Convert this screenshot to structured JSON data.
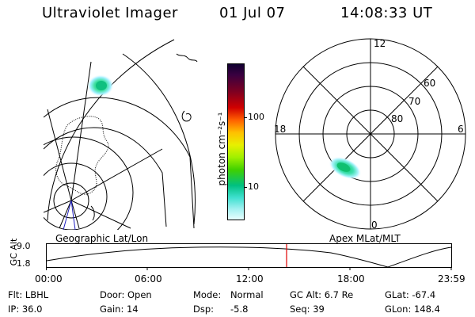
{
  "header": {
    "title": "Ultraviolet Imager",
    "date": "01 Jul 07",
    "time": "14:08:33 UT"
  },
  "geo_panel": {
    "label": "Geographic Lat/Lon"
  },
  "polar_panel": {
    "label": "Apex MLat/MLT",
    "mlt_labels": {
      "top": "12",
      "left": "18",
      "right": "6",
      "bottom": "0"
    },
    "lat_labels": [
      "60",
      "70",
      "80"
    ]
  },
  "colorbar": {
    "unit_label": "photon cm⁻²s⁻¹",
    "ticks": [
      "100",
      "10"
    ],
    "scale": "log"
  },
  "altitude_plot": {
    "axis_label": "GC Alt",
    "y_ticks": [
      "9.0",
      "1.8"
    ],
    "x_ticks": [
      "00:00",
      "06:00",
      "12:00",
      "18:00",
      "23:59"
    ],
    "marker_color": "#e00000"
  },
  "footer": {
    "row1": {
      "flt": "Flt: LBHL",
      "door": "Door: Open",
      "mode_label": "Mode:",
      "mode_value": "Normal",
      "gc_alt": "GC Alt: 6.7 Re",
      "glat": "GLat: -67.4"
    },
    "row2": {
      "ip": "IP: 36.0",
      "gain": "Gain: 14",
      "dsp_label": "Dsp:",
      "dsp_value": "-5.8",
      "seq": "Seq: 39",
      "glon": "GLon: 148.4"
    }
  }
}
